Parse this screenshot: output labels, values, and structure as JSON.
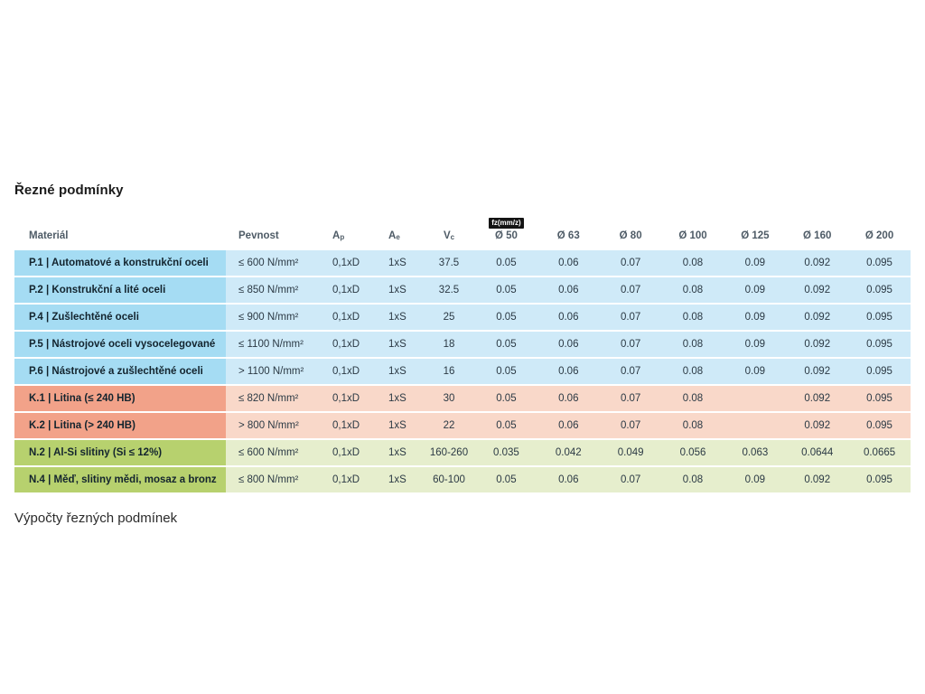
{
  "page": {
    "title": "Řezné podmínky",
    "footer_heading": "Výpočty řezných podmínek"
  },
  "table": {
    "fz_badge": "fz(mm/z)",
    "columns": {
      "material": "Materiál",
      "pevnost": "Pevnost",
      "ap": {
        "base": "A",
        "sub": "p"
      },
      "ae": {
        "base": "A",
        "sub": "e"
      },
      "vc": {
        "base": "V",
        "sub": "c"
      },
      "diameters": [
        "Ø 50",
        "Ø 63",
        "Ø 80",
        "Ø 100",
        "Ø 125",
        "Ø 160",
        "Ø 200"
      ]
    },
    "group_colors": {
      "P": {
        "material_bg": "#a5dcf3",
        "row_bg": "#cfeaf8"
      },
      "K": {
        "material_bg": "#f2a289",
        "row_bg": "#f9d8c9"
      },
      "N": {
        "material_bg": "#b7d16e",
        "row_bg": "#e6eecd"
      }
    },
    "rows": [
      {
        "group": "P",
        "material": "P.1 | Automatové a konstrukční oceli",
        "pevnost": "≤ 600 N/mm²",
        "ap": "0,1xD",
        "ae": "1xS",
        "vc": "37.5",
        "fz": [
          "0.05",
          "0.06",
          "0.07",
          "0.08",
          "0.09",
          "0.092",
          "0.095"
        ]
      },
      {
        "group": "P",
        "material": "P.2 | Konstrukční a lité oceli",
        "pevnost": "≤ 850 N/mm²",
        "ap": "0,1xD",
        "ae": "1xS",
        "vc": "32.5",
        "fz": [
          "0.05",
          "0.06",
          "0.07",
          "0.08",
          "0.09",
          "0.092",
          "0.095"
        ]
      },
      {
        "group": "P",
        "material": "P.4 | Zušlechtěné oceli",
        "pevnost": "≤ 900 N/mm²",
        "ap": "0,1xD",
        "ae": "1xS",
        "vc": "25",
        "fz": [
          "0.05",
          "0.06",
          "0.07",
          "0.08",
          "0.09",
          "0.092",
          "0.095"
        ]
      },
      {
        "group": "P",
        "material": "P.5 | Nástrojové oceli vysocelegované",
        "pevnost": "≤ 1100 N/mm²",
        "ap": "0,1xD",
        "ae": "1xS",
        "vc": "18",
        "fz": [
          "0.05",
          "0.06",
          "0.07",
          "0.08",
          "0.09",
          "0.092",
          "0.095"
        ]
      },
      {
        "group": "P",
        "material": "P.6 | Nástrojové a zušlechtěné oceli",
        "pevnost": "> 1100 N/mm²",
        "ap": "0,1xD",
        "ae": "1xS",
        "vc": "16",
        "fz": [
          "0.05",
          "0.06",
          "0.07",
          "0.08",
          "0.09",
          "0.092",
          "0.095"
        ]
      },
      {
        "group": "K",
        "material": "K.1 | Litina (≤ 240 HB)",
        "pevnost": "≤ 820 N/mm²",
        "ap": "0,1xD",
        "ae": "1xS",
        "vc": "30",
        "fz": [
          "0.05",
          "0.06",
          "0.07",
          "0.08",
          "",
          "0.092",
          "0.095"
        ]
      },
      {
        "group": "K",
        "material": "K.2 | Litina (> 240 HB)",
        "pevnost": "> 800 N/mm²",
        "ap": "0,1xD",
        "ae": "1xS",
        "vc": "22",
        "fz": [
          "0.05",
          "0.06",
          "0.07",
          "0.08",
          "",
          "0.092",
          "0.095"
        ]
      },
      {
        "group": "N",
        "material": "N.2 | Al-Si slitiny (Si ≤ 12%)",
        "pevnost": "≤ 600 N/mm²",
        "ap": "0,1xD",
        "ae": "1xS",
        "vc": "160-260",
        "fz": [
          "0.035",
          "0.042",
          "0.049",
          "0.056",
          "0.063",
          "0.0644",
          "0.0665"
        ]
      },
      {
        "group": "N",
        "material": "N.4 | Měď, slitiny mědi, mosaz a bronz",
        "pevnost": "≤ 800 N/mm²",
        "ap": "0,1xD",
        "ae": "1xS",
        "vc": "60-100",
        "fz": [
          "0.05",
          "0.06",
          "0.07",
          "0.08",
          "0.09",
          "0.092",
          "0.095"
        ]
      }
    ]
  }
}
